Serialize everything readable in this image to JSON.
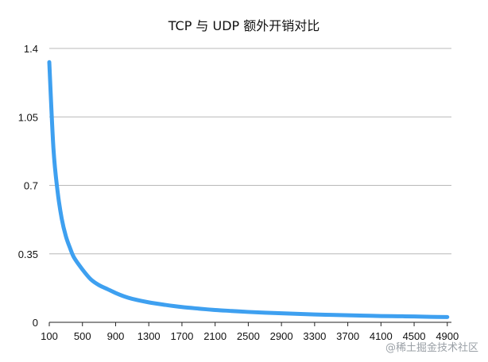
{
  "watermark": "@稀土掘金技术社区",
  "colors": {
    "series": "#3ea0f0",
    "grid": "#b8b8b8",
    "axis": "#222222"
  },
  "chart_data": {
    "type": "line",
    "title": "TCP 与 UDP 额外开销对比",
    "xlabel": "",
    "ylabel": "",
    "grid": true,
    "legend": "none",
    "xlim": [
      100,
      4950
    ],
    "ylim": [
      0,
      1.4
    ],
    "y_ticks": [
      0,
      0.35,
      0.7,
      1.05,
      1.4
    ],
    "y_tick_labels": [
      "0",
      "0.35",
      "0.7",
      "1.05",
      "1.4"
    ],
    "x_ticks": [
      100,
      500,
      900,
      1300,
      1700,
      2100,
      2500,
      2900,
      3300,
      3700,
      4100,
      4500,
      4900
    ],
    "x_tick_labels": [
      "100",
      "500",
      "900",
      "1300",
      "1700",
      "2100",
      "2500",
      "2900",
      "3300",
      "3700",
      "4100",
      "4500",
      "4900"
    ],
    "series": [
      {
        "x": [
          100,
          150,
          200,
          250,
          300,
          350,
          400,
          500,
          600,
          700,
          800,
          900,
          1000,
          1100,
          1300,
          1500,
          1700,
          1900,
          2100,
          2300,
          2500,
          2700,
          2900,
          3100,
          3300,
          3500,
          3700,
          3900,
          4100,
          4300,
          4500,
          4700,
          4900
        ],
        "y": [
          1.33,
          0.89,
          0.67,
          0.53,
          0.44,
          0.38,
          0.33,
          0.27,
          0.22,
          0.19,
          0.17,
          0.15,
          0.133,
          0.12,
          0.102,
          0.089,
          0.078,
          0.07,
          0.063,
          0.058,
          0.053,
          0.049,
          0.046,
          0.043,
          0.04,
          0.038,
          0.036,
          0.034,
          0.032,
          0.031,
          0.03,
          0.028,
          0.027
        ]
      }
    ]
  }
}
